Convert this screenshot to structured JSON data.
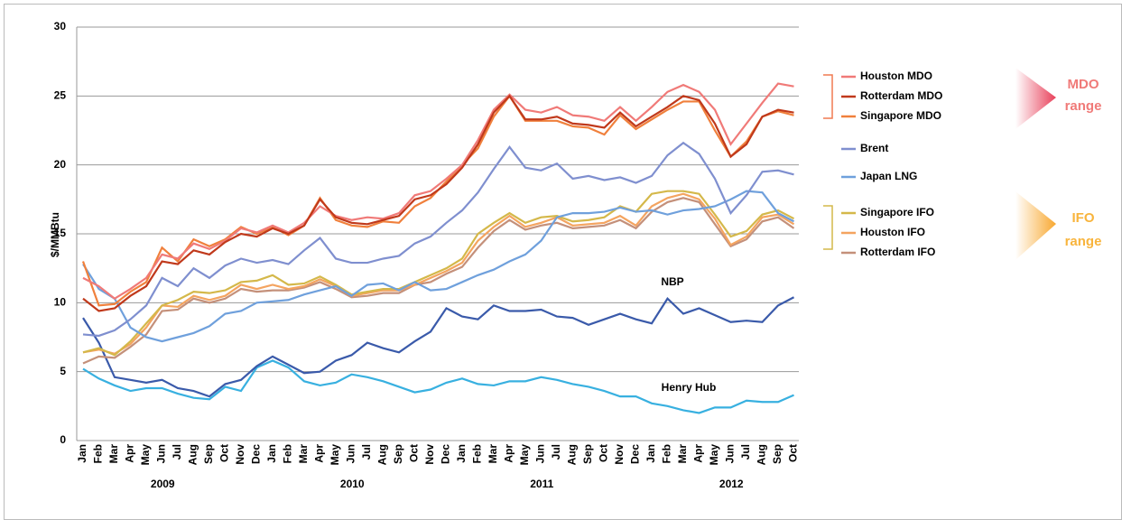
{
  "chart_data": {
    "type": "line",
    "y_label": "$/MMBtu",
    "ylim": [
      0,
      30
    ],
    "yticks": [
      0,
      5,
      10,
      15,
      20,
      25,
      30
    ],
    "grid": true,
    "categories": [
      "Jan",
      "Feb",
      "Mar",
      "Apr",
      "May",
      "Jun",
      "Jul",
      "Aug",
      "Sep",
      "Oct",
      "Nov",
      "Dec",
      "Jan",
      "Feb",
      "Mar",
      "Apr",
      "May",
      "Jun",
      "Jul",
      "Aug",
      "Sep",
      "Oct",
      "Nov",
      "Dec",
      "Jan",
      "Feb",
      "Mar",
      "Apr",
      "May",
      "Jun",
      "Jul",
      "Aug",
      "Sep",
      "Oct",
      "Nov",
      "Dec",
      "Jan",
      "Feb",
      "Mar",
      "Apr",
      "May",
      "Jun",
      "Jul",
      "Aug",
      "Sep",
      "Oct"
    ],
    "years": [
      "2009",
      "2010",
      "2011",
      "2012"
    ],
    "series": [
      {
        "name": "Houston MDO",
        "color": "#f07a78",
        "legend": true,
        "values": [
          11.8,
          11.2,
          10.3,
          11,
          11.8,
          13.5,
          13.2,
          14.3,
          13.9,
          14.5,
          15.4,
          15.1,
          15.6,
          15.1,
          15.8,
          17,
          16.3,
          16,
          16.2,
          16.1,
          16.5,
          17.8,
          18.1,
          19,
          20,
          21.8,
          24,
          25.1,
          24,
          23.8,
          24.2,
          23.6,
          23.5,
          23.2,
          24.2,
          23.2,
          24.2,
          25.3,
          25.8,
          25.3,
          24,
          21.5,
          23,
          24.5,
          25.9,
          25.7
        ]
      },
      {
        "name": "Rotterdam MDO",
        "color": "#c0391b",
        "legend": true,
        "values": [
          10.3,
          9.4,
          9.6,
          10.5,
          11.2,
          13,
          12.8,
          13.8,
          13.5,
          14.4,
          15,
          14.8,
          15.4,
          15,
          15.6,
          17.5,
          16.2,
          15.8,
          15.7,
          16,
          16.3,
          17.5,
          17.8,
          18.6,
          19.8,
          21.5,
          23.8,
          25,
          23.3,
          23.3,
          23.5,
          23,
          22.9,
          22.7,
          23.8,
          22.8,
          23.5,
          24.2,
          25,
          24.7,
          23,
          20.6,
          21.5,
          23.5,
          24,
          23.8
        ]
      },
      {
        "name": "Singapore MDO",
        "color": "#f0803c",
        "legend": true,
        "values": [
          13,
          9.8,
          9.9,
          10.8,
          11.5,
          14,
          13,
          14.6,
          14.1,
          14.6,
          15.5,
          15,
          15.5,
          14.9,
          15.6,
          17.6,
          16,
          15.6,
          15.5,
          15.9,
          15.8,
          17,
          17.6,
          18.8,
          20,
          21.2,
          23.5,
          25,
          23.2,
          23.2,
          23.2,
          22.8,
          22.7,
          22.2,
          23.6,
          22.6,
          23.3,
          24,
          24.6,
          24.6,
          22.5,
          20.6,
          21.7,
          23.5,
          23.9,
          23.6
        ]
      },
      {
        "name": "Brent",
        "color": "#7f8fcf",
        "legend": true,
        "values": [
          7.7,
          7.6,
          8,
          8.8,
          9.8,
          11.8,
          11.2,
          12.5,
          11.8,
          12.7,
          13.2,
          12.9,
          13.1,
          12.8,
          13.8,
          14.7,
          13.2,
          12.9,
          12.9,
          13.2,
          13.4,
          14.3,
          14.8,
          15.8,
          16.7,
          18,
          19.7,
          21.3,
          19.8,
          19.6,
          20.1,
          19,
          19.2,
          18.9,
          19.1,
          18.7,
          19.2,
          20.7,
          21.6,
          20.8,
          19,
          16.5,
          17.8,
          19.5,
          19.6,
          19.3
        ]
      },
      {
        "name": "Japan LNG",
        "color": "#6fa0dc",
        "legend": true,
        "values": [
          12.8,
          11,
          10.3,
          8.2,
          7.5,
          7.2,
          7.5,
          7.8,
          8.3,
          9.2,
          9.4,
          10,
          10.1,
          10.2,
          10.6,
          10.9,
          11.2,
          10.5,
          11.3,
          11.4,
          10.9,
          11.5,
          10.9,
          11,
          11.5,
          12,
          12.4,
          13,
          13.5,
          14.5,
          16.2,
          16.5,
          16.5,
          16.6,
          16.9,
          16.6,
          16.7,
          16.4,
          16.7,
          16.8,
          17,
          17.5,
          18.1,
          18,
          16.5,
          15.9
        ]
      },
      {
        "name": "Singapore IFO",
        "color": "#d4b84a",
        "legend": true,
        "values": [
          6.4,
          6.7,
          6.2,
          7.2,
          8.5,
          9.8,
          10.2,
          10.8,
          10.7,
          10.9,
          11.5,
          11.6,
          12,
          11.3,
          11.4,
          11.9,
          11.3,
          10.6,
          10.8,
          11,
          11,
          11.5,
          12,
          12.5,
          13.2,
          15,
          15.8,
          16.5,
          15.8,
          16.2,
          16.3,
          15.9,
          16,
          16.2,
          17,
          16.6,
          17.9,
          18.1,
          18.1,
          17.9,
          16.4,
          14.8,
          15.2,
          16.4,
          16.7,
          16.1
        ]
      },
      {
        "name": "Houston IFO",
        "color": "#f4a460",
        "legend": true,
        "values": [
          6.4,
          6.6,
          6.3,
          7,
          8.2,
          9.8,
          9.7,
          10.5,
          10.2,
          10.5,
          11.3,
          11,
          11.3,
          11,
          11.2,
          11.7,
          11.2,
          10.5,
          10.7,
          10.9,
          10.9,
          11.3,
          11.8,
          12.3,
          12.9,
          14.5,
          15.5,
          16.3,
          15.5,
          15.8,
          16.2,
          15.6,
          15.7,
          15.8,
          16.3,
          15.6,
          17,
          17.6,
          17.9,
          17.5,
          16.1,
          14.2,
          14.8,
          16.2,
          16.4,
          15.7
        ]
      },
      {
        "name": "Rotterdam IFO",
        "color": "#c4907a",
        "legend": true,
        "values": [
          5.6,
          6.1,
          6,
          6.8,
          7.7,
          9.4,
          9.5,
          10.3,
          10,
          10.3,
          11,
          10.8,
          10.9,
          10.9,
          11.1,
          11.5,
          11,
          10.4,
          10.5,
          10.7,
          10.7,
          11.3,
          11.5,
          12.1,
          12.6,
          14,
          15.2,
          16,
          15.3,
          15.6,
          15.8,
          15.4,
          15.5,
          15.6,
          16,
          15.4,
          16.6,
          17.3,
          17.6,
          17.3,
          15.7,
          14.1,
          14.6,
          15.9,
          16.2,
          15.4
        ]
      },
      {
        "name": "NBP",
        "color": "#3a5aaa",
        "legend": false,
        "values": [
          8.9,
          7.1,
          4.6,
          4.4,
          4.2,
          4.4,
          3.8,
          3.6,
          3.2,
          4.1,
          4.4,
          5.4,
          6.1,
          5.5,
          4.9,
          5,
          5.8,
          6.2,
          7.1,
          6.7,
          6.4,
          7.2,
          7.9,
          9.6,
          9,
          8.8,
          9.8,
          9.4,
          9.4,
          9.5,
          9,
          8.9,
          8.4,
          8.8,
          9.2,
          8.8,
          8.5,
          10.3,
          9.2,
          9.6,
          9.1,
          8.6,
          8.7,
          8.6,
          9.8,
          10.4
        ]
      },
      {
        "name": "Henry Hub",
        "color": "#38b0e0",
        "legend": false,
        "values": [
          5.2,
          4.5,
          4,
          3.6,
          3.8,
          3.8,
          3.4,
          3.1,
          3,
          3.9,
          3.6,
          5.3,
          5.8,
          5.3,
          4.3,
          4,
          4.2,
          4.8,
          4.6,
          4.3,
          3.9,
          3.5,
          3.7,
          4.2,
          4.5,
          4.1,
          4,
          4.3,
          4.3,
          4.6,
          4.4,
          4.1,
          3.9,
          3.6,
          3.2,
          3.2,
          2.7,
          2.5,
          2.2,
          2,
          2.4,
          2.4,
          2.9,
          2.8,
          2.8,
          3.3
        ]
      }
    ],
    "ranges": [
      {
        "lines": [
          "MDO",
          "range"
        ],
        "color": "#f07a78"
      },
      {
        "lines": [
          "IFO",
          "range"
        ],
        "color": "#f8b43c"
      }
    ]
  }
}
